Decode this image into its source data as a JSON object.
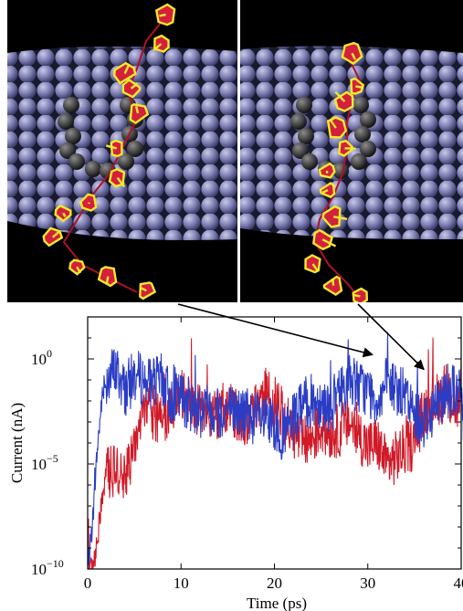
{
  "figure": {
    "panels": [
      {
        "name": "snapshot-left"
      },
      {
        "name": "snapshot-right"
      }
    ]
  },
  "colors": {
    "membrane": "#7f80b4",
    "membrane_highlight": "#b9badf",
    "pore_atoms": "#4a4a4a",
    "dna_strand": "#f2ea2a",
    "dna_base": "#d41f3d",
    "backbone_line": "#b0102a",
    "series_blue": "#2b3dc4",
    "series_red": "#d01a28",
    "arrow": "#000000"
  },
  "chart_data": {
    "type": "line",
    "xlabel": "Time (ps)",
    "ylabel": "Current (nA)",
    "xlim": [
      0,
      40
    ],
    "ylim_log10": [
      -10,
      2
    ],
    "yscale": "log",
    "x_ticks": [
      "0",
      "10",
      "20",
      "30",
      "40"
    ],
    "y_ticks": [
      {
        "base": "10",
        "exp": "0",
        "log10": 0
      },
      {
        "base": "10",
        "exp": "−5",
        "log10": -5
      },
      {
        "base": "10",
        "exp": "−10",
        "log10": -10
      }
    ],
    "grid": false,
    "legend": "none",
    "series": [
      {
        "color": "blue",
        "log10_values": [
          [
            0.0,
            -10.0
          ],
          [
            0.5,
            -8.0
          ],
          [
            1.0,
            -4.5
          ],
          [
            1.5,
            -2.0
          ],
          [
            2.0,
            -1.0
          ],
          [
            3.0,
            -0.5
          ],
          [
            4.0,
            -1.5
          ],
          [
            5.0,
            -0.8
          ],
          [
            6.0,
            -1.0
          ],
          [
            7.0,
            -1.2
          ],
          [
            8.0,
            -1.0
          ],
          [
            9.0,
            -2.0
          ],
          [
            10.0,
            -1.8
          ],
          [
            11.0,
            -2.2
          ],
          [
            12.0,
            -2.5
          ],
          [
            13.0,
            -2.3
          ],
          [
            14.0,
            -2.6
          ],
          [
            15.0,
            -2.4
          ],
          [
            16.0,
            -2.5
          ],
          [
            17.0,
            -2.7
          ],
          [
            18.0,
            -2.8
          ],
          [
            19.0,
            -3.0
          ],
          [
            20.0,
            -3.3
          ],
          [
            21.0,
            -3.6
          ],
          [
            22.0,
            -3.0
          ],
          [
            23.0,
            -2.2
          ],
          [
            24.0,
            -2.0
          ],
          [
            25.0,
            -2.0
          ],
          [
            26.0,
            -2.3
          ],
          [
            27.0,
            -1.6
          ],
          [
            28.0,
            -1.0
          ],
          [
            29.0,
            -1.3
          ],
          [
            30.0,
            -1.5
          ],
          [
            31.0,
            -2.0
          ],
          [
            32.0,
            -1.2
          ],
          [
            33.0,
            -1.4
          ],
          [
            34.0,
            -1.8
          ],
          [
            35.0,
            -2.6
          ],
          [
            36.0,
            -3.0
          ],
          [
            37.0,
            -2.4
          ],
          [
            38.0,
            -1.8
          ],
          [
            39.0,
            -1.4
          ],
          [
            40.0,
            -1.8
          ],
          [
            40.5,
            -4.5
          ]
        ]
      },
      {
        "color": "red",
        "log10_values": [
          [
            0.0,
            -10.0
          ],
          [
            0.8,
            -9.5
          ],
          [
            1.2,
            -8.0
          ],
          [
            1.6,
            -6.5
          ],
          [
            2.0,
            -5.5
          ],
          [
            3.0,
            -5.3
          ],
          [
            4.0,
            -5.5
          ],
          [
            5.0,
            -4.5
          ],
          [
            6.0,
            -2.0
          ],
          [
            7.0,
            -2.6
          ],
          [
            8.0,
            -3.0
          ],
          [
            9.0,
            -2.2
          ],
          [
            10.0,
            -1.8
          ],
          [
            11.0,
            -2.0
          ],
          [
            12.0,
            -2.5
          ],
          [
            13.0,
            -3.0
          ],
          [
            14.0,
            -2.6
          ],
          [
            15.0,
            -2.2
          ],
          [
            16.0,
            -2.6
          ],
          [
            17.0,
            -2.9
          ],
          [
            18.0,
            -2.3
          ],
          [
            19.0,
            -1.7
          ],
          [
            20.0,
            -2.0
          ],
          [
            21.0,
            -2.8
          ],
          [
            22.0,
            -3.5
          ],
          [
            23.0,
            -4.0
          ],
          [
            24.0,
            -3.8
          ],
          [
            25.0,
            -3.3
          ],
          [
            26.0,
            -3.5
          ],
          [
            27.0,
            -3.4
          ],
          [
            28.0,
            -3.0
          ],
          [
            29.0,
            -3.6
          ],
          [
            30.0,
            -4.2
          ],
          [
            31.0,
            -4.0
          ],
          [
            32.0,
            -5.0
          ],
          [
            33.0,
            -4.7
          ],
          [
            34.0,
            -4.3
          ],
          [
            35.0,
            -4.0
          ],
          [
            36.0,
            -2.5
          ],
          [
            37.0,
            -2.0
          ],
          [
            38.0,
            -1.8
          ],
          [
            39.0,
            -2.0
          ],
          [
            40.0,
            -2.4
          ]
        ]
      }
    ],
    "annotations": [
      {
        "type": "arrow",
        "from_panel": "snapshot-left",
        "to_x": 30.5,
        "to_log10": 0.2
      },
      {
        "type": "arrow",
        "from_panel": "snapshot-right",
        "to_x": 36.0,
        "to_log10": -0.5
      }
    ]
  }
}
